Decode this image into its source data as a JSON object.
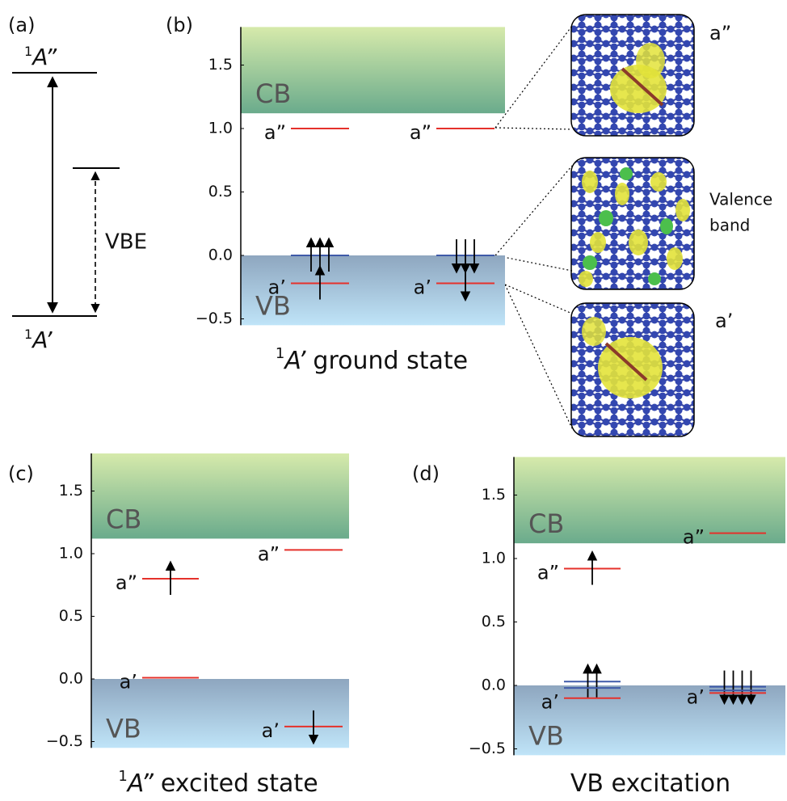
{
  "panel_a": {
    "label": "(a)",
    "upper_sup": "1",
    "upper_main": "A”",
    "lower_sup": "1",
    "lower_main": "A’",
    "vbe": "VBE"
  },
  "orbitals": {
    "top": "a”",
    "middle": [
      "Valence",
      "band"
    ],
    "bottom": "a’"
  },
  "chart_data": [
    {
      "type": "level",
      "panel": "(b)",
      "title_sup": "1",
      "title_italic": "A’",
      "title": "ground state",
      "ylim": [
        -0.55,
        1.8
      ],
      "yticks": [
        {
          "value": -0.5,
          "label": "−0.5"
        },
        {
          "value": 0,
          "label": "0.0"
        },
        0.5,
        {
          "value": 1,
          "label": "1.0"
        },
        1.5
      ],
      "bands": [
        {
          "label": "CB",
          "from": 1.12,
          "to": 1.8,
          "colors": [
            "#d6eaab",
            "#6aab8c"
          ]
        },
        {
          "label": "VB",
          "from": -0.55,
          "to": 0,
          "colors": [
            "#8ea6bf",
            "#bfe4f8"
          ]
        }
      ],
      "columns": [
        [
          {
            "label": "a”",
            "value": 1.0,
            "color": "#e5312b",
            "spin_up": 0,
            "spin_down": 0
          },
          {
            "value": 0.0,
            "color": "#3f5aa8",
            "spin_up": 3,
            "spin_down": 0
          },
          {
            "label": "a’",
            "value": -0.22,
            "color": "#e5312b",
            "spin_up": 1,
            "spin_down": 0
          }
        ],
        [
          {
            "label": "a”",
            "value": 1.0,
            "color": "#e5312b",
            "spin_up": 0,
            "spin_down": 0
          },
          {
            "value": 0.0,
            "color": "#3f5aa8",
            "spin_up": 0,
            "spin_down": 3
          },
          {
            "label": "a’",
            "value": -0.22,
            "color": "#e5312b",
            "spin_up": 0,
            "spin_down": 1
          }
        ]
      ]
    },
    {
      "type": "level",
      "panel": "(c)",
      "title_sup": "1",
      "title_italic": "A”",
      "title": "excited state",
      "ylim": [
        -0.55,
        1.8
      ],
      "yticks": [
        {
          "value": -0.5,
          "label": "−0.5"
        },
        {
          "value": 0,
          "label": "0.0"
        },
        0.5,
        {
          "value": 1,
          "label": "1.0"
        },
        1.5
      ],
      "bands": [
        {
          "label": "CB",
          "from": 1.12,
          "to": 1.8,
          "colors": [
            "#d6eaab",
            "#6aab8c"
          ]
        },
        {
          "label": "VB",
          "from": -0.55,
          "to": 0,
          "colors": [
            "#8ea6bf",
            "#bfe4f8"
          ]
        }
      ],
      "columns": [
        [
          {
            "label": "a”",
            "value": 0.8,
            "color": "#e5312b",
            "spin_up": 1,
            "spin_down": 0
          },
          {
            "label": "a’",
            "value": 0.01,
            "color": "#e5312b",
            "spin_up": 0,
            "spin_down": 0
          }
        ],
        [
          {
            "label": "a”",
            "value": 1.03,
            "color": "#e5312b",
            "spin_up": 0,
            "spin_down": 0
          },
          {
            "label": "a’",
            "value": -0.38,
            "color": "#e5312b",
            "spin_up": 0,
            "spin_down": 1
          }
        ]
      ]
    },
    {
      "type": "level",
      "panel": "(d)",
      "title": "VB excitation",
      "ylim": [
        -0.55,
        1.8
      ],
      "yticks": [
        {
          "value": -0.5,
          "label": "−0.5"
        },
        {
          "value": 0,
          "label": "0.0"
        },
        0.5,
        {
          "value": 1,
          "label": "1.0"
        },
        1.5
      ],
      "bands": [
        {
          "label": "CB",
          "from": 1.12,
          "to": 1.8,
          "colors": [
            "#d6eaab",
            "#6aab8c"
          ]
        },
        {
          "label": "VB",
          "from": -0.55,
          "to": 0,
          "colors": [
            "#8ea6bf",
            "#bfe4f8"
          ]
        }
      ],
      "columns": [
        [
          {
            "label": "a”",
            "value": 0.92,
            "color": "#e5312b",
            "spin_up": 1,
            "spin_down": 0
          },
          {
            "value": 0.03,
            "color": "#3f5aa8",
            "spin_up": 2,
            "spin_down": 0
          },
          {
            "value": -0.02,
            "color": "#3f5aa8",
            "spin_up": 0,
            "spin_down": 0
          },
          {
            "label": "a’",
            "value": -0.1,
            "color": "#e5312b",
            "spin_up": 0,
            "spin_down": 0
          }
        ],
        [
          {
            "label": "a”",
            "value": 1.2,
            "color": "#e5312b",
            "spin_up": 0,
            "spin_down": 0
          },
          {
            "value": -0.01,
            "color": "#3f5aa8",
            "spin_up": 0,
            "spin_down": 4
          },
          {
            "value": -0.04,
            "color": "#3f5aa8",
            "spin_up": 0,
            "spin_down": 0
          },
          {
            "label": "a’",
            "value": -0.06,
            "color": "#e5312b",
            "spin_up": 0,
            "spin_down": 0
          }
        ]
      ]
    }
  ]
}
